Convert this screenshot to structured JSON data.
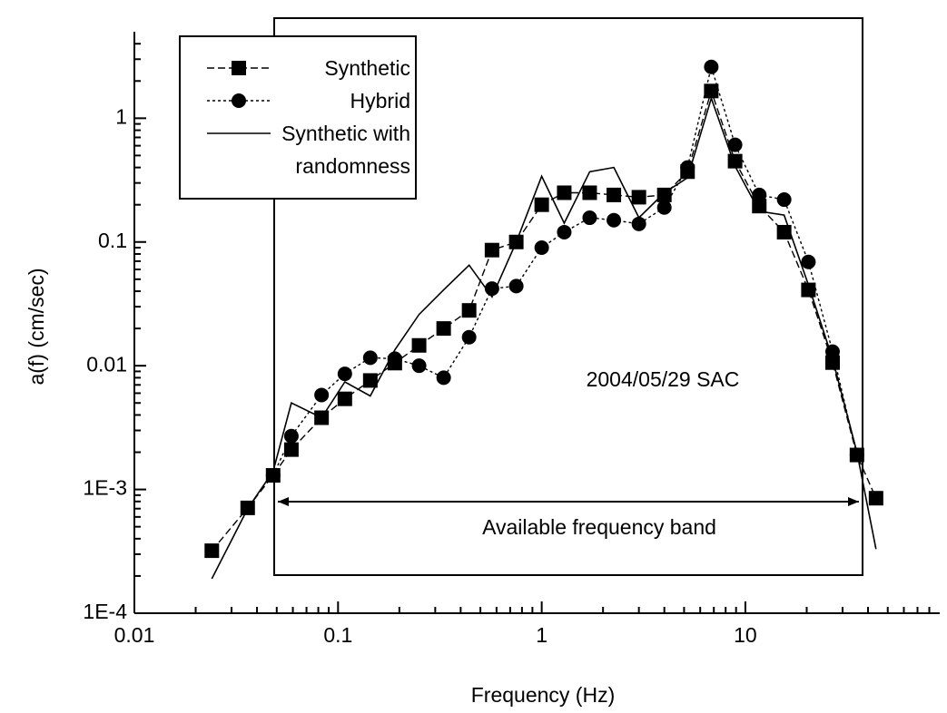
{
  "chart_data": {
    "type": "line",
    "xlabel": "Frequency (Hz)",
    "ylabel": "a(f) (cm/sec)",
    "annotations": [
      "2004/05/29 SAC",
      "Available frequency band"
    ],
    "log_x": true,
    "log_y": true,
    "legend": "top-left",
    "xlim": [
      0.01,
      90
    ],
    "ylim": [
      0.0001,
      5
    ],
    "xticks": [
      0.01,
      0.1,
      1,
      10
    ],
    "yticks": [
      {
        "value": 0.0001,
        "label": "1E-4"
      },
      {
        "value": 0.001,
        "label": "1E-3"
      },
      0.01,
      0.1,
      1
    ],
    "x": [
      0.024,
      0.036,
      0.048,
      0.059,
      0.083,
      0.108,
      0.144,
      0.19,
      0.25,
      0.33,
      0.44,
      0.57,
      0.75,
      1.0,
      1.29,
      1.72,
      2.26,
      3.0,
      4.0,
      5.2,
      6.8,
      8.9,
      11.7,
      15.5,
      20.4,
      26.8,
      35.3,
      43.8
    ],
    "series": [
      {
        "name": "Synthetic",
        "color": "#000000",
        "marker": "square",
        "dash": "dashed",
        "values": [
          0.00032,
          0.00071,
          0.0013,
          0.0021,
          0.0038,
          0.0054,
          0.0076,
          0.0105,
          0.0146,
          0.02,
          0.028,
          0.086,
          0.1,
          0.2,
          0.25,
          0.25,
          0.24,
          0.23,
          0.24,
          0.37,
          1.66,
          0.45,
          0.195,
          0.12,
          0.041,
          0.0106,
          0.0019,
          0.00085
        ]
      },
      {
        "name": "Hybrid",
        "color": "#000000",
        "marker": "circle",
        "dash": "dotted",
        "values": [
          null,
          null,
          0.0013,
          0.0027,
          0.0058,
          0.0086,
          0.0116,
          0.0114,
          0.01,
          0.008,
          0.017,
          0.042,
          0.044,
          0.09,
          0.12,
          0.157,
          0.15,
          0.14,
          0.19,
          0.4,
          2.6,
          0.61,
          0.24,
          0.22,
          0.069,
          0.013,
          0.0019,
          null
        ]
      },
      {
        "name": "Synthetic with randomness",
        "color": "#000000",
        "marker": "none",
        "dash": "solid",
        "values": [
          0.00019,
          0.0007,
          0.0014,
          0.005,
          0.0038,
          0.0074,
          0.0057,
          0.0134,
          0.026,
          0.041,
          0.065,
          0.036,
          0.1,
          0.34,
          0.142,
          0.37,
          0.4,
          0.157,
          0.25,
          0.33,
          1.45,
          0.41,
          0.177,
          0.165,
          0.045,
          0.0113,
          0.002,
          0.00033
        ]
      }
    ]
  }
}
